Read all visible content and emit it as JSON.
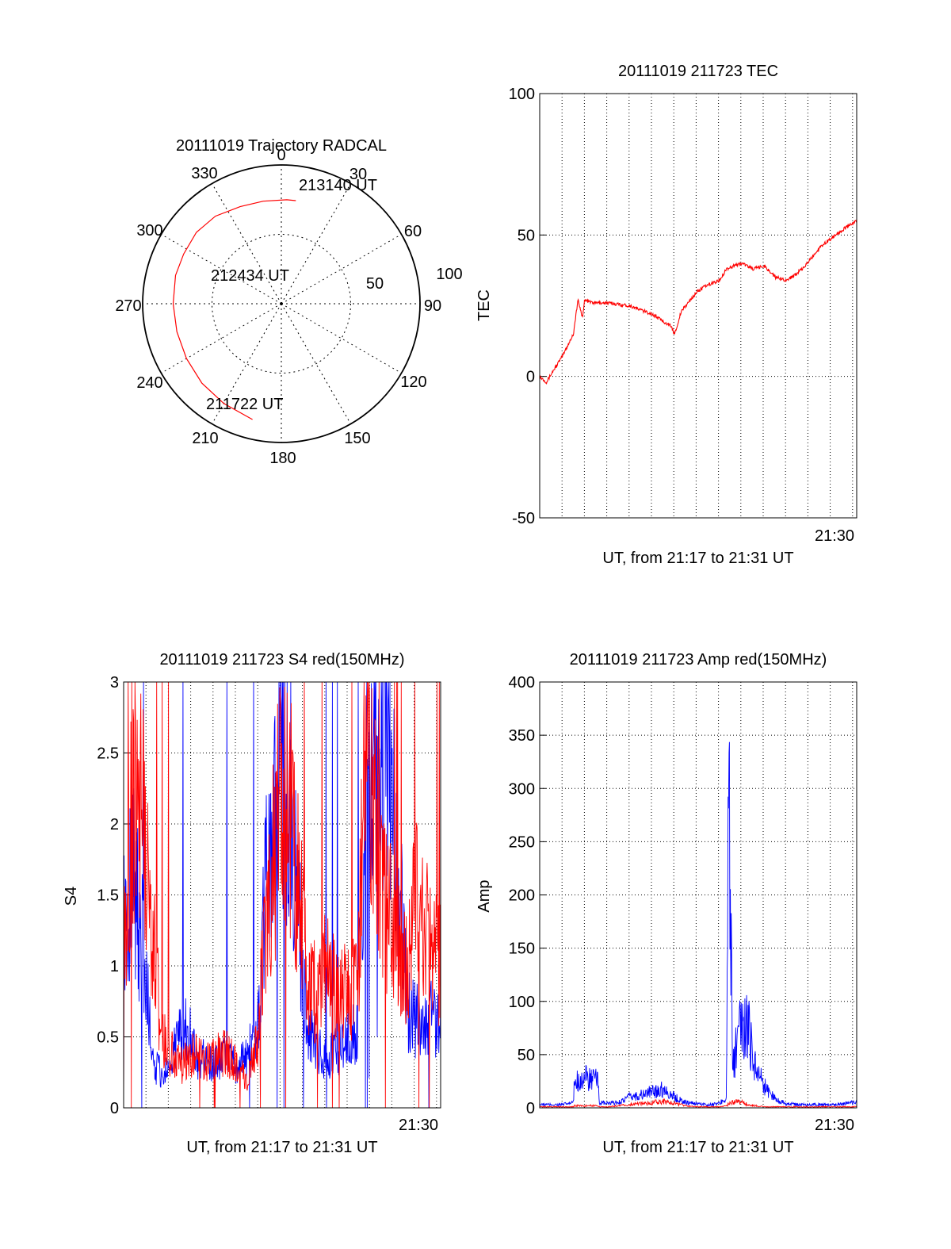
{
  "colors": {
    "red": "#ff0000",
    "blue": "#0000ff",
    "axis": "#000000"
  },
  "chart_data": [
    {
      "id": "polar",
      "type": "polar-trajectory",
      "title": "20111019 Trajectory RADCAL",
      "azimuth_labels": [
        "0",
        "30",
        "60",
        "90",
        "120",
        "150",
        "180",
        "210",
        "240",
        "270",
        "300",
        "330"
      ],
      "radial_labels": [
        "50",
        "100"
      ],
      "rlim": [
        0,
        100
      ],
      "trajectory": {
        "color": "red",
        "points_az_r": [
          [
            194,
            86
          ],
          [
            210,
            83
          ],
          [
            225,
            81
          ],
          [
            240,
            79
          ],
          [
            255,
            78
          ],
          [
            270,
            78
          ],
          [
            285,
            79
          ],
          [
            297,
            79
          ],
          [
            310,
            80
          ],
          [
            323,
            79
          ],
          [
            337,
            76
          ],
          [
            350,
            75
          ],
          [
            3,
            75
          ],
          [
            8,
            75
          ]
        ]
      },
      "time_labels": [
        "213140 UT",
        "212434 UT",
        "211722 UT"
      ]
    },
    {
      "id": "tec",
      "type": "line",
      "title": "20111019 211723 TEC",
      "xlabel": "UT, from 21:17 to 21:31 UT",
      "ylabel": "TEC",
      "xtick_label": "21:30",
      "ylim": [
        -50,
        100
      ],
      "yticks": [
        "100",
        "50",
        "0",
        "-50"
      ],
      "x_minutes": [
        0,
        0.3,
        0.6,
        1.0,
        1.5,
        1.7,
        1.9,
        2.0,
        2.4,
        3.0,
        4.0,
        5.0,
        5.8,
        6.0,
        6.3,
        6.6,
        7.0,
        7.4,
        8.0,
        8.3,
        8.6,
        9.0,
        9.5,
        10.0,
        10.5,
        11.0,
        11.7,
        12.1,
        12.5,
        13.0,
        13.5,
        14.1
      ],
      "series": [
        {
          "color": "red",
          "values": [
            0,
            -2,
            2,
            7,
            15,
            27,
            21,
            27,
            26,
            26,
            25,
            22,
            18,
            15,
            23,
            26,
            30,
            32,
            34,
            38,
            39,
            40,
            38,
            39,
            35,
            34,
            38,
            42,
            46,
            49,
            52,
            55
          ]
        }
      ]
    },
    {
      "id": "s4",
      "type": "line",
      "title": "20111019 211723 S4 red(150MHz)",
      "xlabel": "UT, from 21:17 to 21:31 UT",
      "ylabel": "S4",
      "xtick_label": "21:30",
      "ylim": [
        0,
        3
      ],
      "yticks": [
        "0",
        "0.5",
        "1",
        "1.5",
        "2",
        "2.5",
        "3"
      ],
      "x_minutes": [
        0,
        0.5,
        1.0,
        1.3,
        1.7,
        2.0,
        2.6,
        3.0,
        3.3,
        3.6,
        4.0,
        4.5,
        5.0,
        5.5,
        6.0,
        6.3,
        6.6,
        7.0,
        7.4,
        7.8,
        8.2,
        8.6,
        9.0,
        9.5,
        10.0,
        10.4,
        10.8,
        11.2,
        11.6,
        12.0,
        12.6,
        13.0,
        13.5,
        14.1
      ],
      "series": [
        {
          "color": "blue",
          "values": [
            1.4,
            1.6,
            0.9,
            0.3,
            0.25,
            0.25,
            0.6,
            0.5,
            0.3,
            0.35,
            0.3,
            0.35,
            0.3,
            0.35,
            0.6,
            1.5,
            1.8,
            2.4,
            2.0,
            1.3,
            0.6,
            0.4,
            0.35,
            0.4,
            0.5,
            0.55,
            2.8,
            2.5,
            2.6,
            2.3,
            0.7,
            0.6,
            0.65,
            0.6
          ]
        },
        {
          "color": "red",
          "values": [
            1.3,
            2.4,
            1.9,
            1.2,
            0.5,
            0.4,
            0.3,
            0.35,
            0.4,
            0.3,
            0.35,
            0.4,
            0.3,
            0.2,
            0.5,
            1.3,
            1.6,
            2.2,
            2.1,
            1.5,
            0.9,
            0.8,
            1.0,
            0.85,
            0.8,
            0.9,
            2.5,
            2.0,
            1.5,
            1.2,
            1.0,
            1.5,
            1.2,
            1.0
          ]
        }
      ]
    },
    {
      "id": "amp",
      "type": "line",
      "title": "20111019 211723 Amp red(150MHz)",
      "xlabel": "UT, from 21:17 to 21:31 UT",
      "ylabel": "Amp",
      "xtick_label": "21:30",
      "ylim": [
        0,
        400
      ],
      "yticks": [
        "0",
        "50",
        "100",
        "150",
        "200",
        "250",
        "300",
        "350",
        "400"
      ],
      "x_minutes": [
        0,
        1.0,
        1.5,
        1.55,
        2.0,
        2.6,
        2.65,
        3.0,
        3.5,
        4.0,
        4.5,
        5.0,
        5.5,
        6.0,
        6.5,
        7.0,
        7.5,
        8.0,
        8.3,
        8.4,
        8.5,
        8.6,
        8.8,
        9.0,
        9.3,
        9.6,
        10.0,
        10.5,
        11.0,
        11.5,
        12.0,
        12.5,
        13.0,
        13.5,
        14.1
      ],
      "series": [
        {
          "color": "blue",
          "values": [
            3,
            3,
            5,
            25,
            28,
            25,
            5,
            4,
            5,
            10,
            12,
            15,
            18,
            10,
            5,
            4,
            3,
            4,
            10,
            305,
            150,
            40,
            60,
            80,
            70,
            40,
            20,
            8,
            4,
            3,
            3,
            3,
            3,
            4,
            5
          ]
        },
        {
          "color": "red",
          "values": [
            1,
            1,
            1,
            2,
            2,
            2,
            1,
            1,
            2,
            3,
            4,
            5,
            6,
            4,
            2,
            1,
            1,
            1,
            2,
            4,
            5,
            5,
            6,
            5,
            3,
            2,
            1,
            1,
            1,
            1,
            1,
            1,
            1,
            1,
            1
          ]
        }
      ]
    }
  ]
}
